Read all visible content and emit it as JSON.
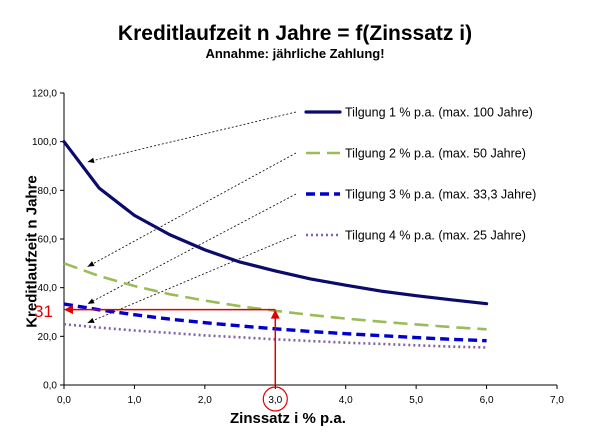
{
  "chart_data": {
    "type": "line",
    "title": "Kreditlaufzeit n Jahre = f(Zinssatz i)",
    "subtitle": "Annahme: jährliche Zahlung!",
    "xlabel": "Zinssatz  i % p.a.",
    "ylabel": "Kreditlaufzeit  n Jahre",
    "xlim": [
      0,
      7
    ],
    "ylim": [
      0,
      120
    ],
    "x_ticks": [
      "0,0",
      "1,0",
      "2,0",
      "3,0",
      "4,0",
      "5,0",
      "6,0",
      "7,0"
    ],
    "y_ticks": [
      "0,0",
      "20,0",
      "40,0",
      "60,0",
      "80,0",
      "100,0",
      "120,0"
    ],
    "grid": false,
    "legend_position": "right",
    "x": [
      0,
      0.5,
      1,
      1.5,
      2,
      2.5,
      3,
      3.5,
      4,
      4.5,
      5,
      5.5,
      6
    ],
    "series": [
      {
        "name": "Tilgung 1 % p.a. (max. 100 Jahre)",
        "color": "#0b0b6b",
        "style": "solid",
        "values": [
          100.0,
          80.9,
          69.7,
          61.8,
          55.5,
          50.5,
          46.9,
          43.6,
          41.0,
          38.6,
          36.7,
          35.0,
          33.4
        ]
      },
      {
        "name": "Tilgung 2 % p.a. (max. 50 Jahre)",
        "color": "#9bbb59",
        "style": "dashed",
        "values": [
          50.0,
          44.8,
          40.7,
          37.3,
          34.7,
          32.4,
          30.5,
          28.8,
          27.3,
          26.0,
          24.9,
          23.8,
          22.9
        ]
      },
      {
        "name": "Tilgung 3 % p.a. (max. 33,3 Jahre)",
        "color": "#0000cc",
        "style": "dashed-thick",
        "values": [
          33.3,
          30.9,
          28.9,
          27.1,
          25.6,
          24.3,
          23.1,
          22.0,
          21.1,
          20.3,
          19.5,
          18.8,
          18.2
        ]
      },
      {
        "name": "Tilgung 4 % p.a. (max. 25 Jahre)",
        "color": "#8064a2",
        "style": "dotted",
        "values": [
          25.0,
          23.6,
          22.4,
          21.4,
          20.4,
          19.6,
          18.8,
          18.1,
          17.4,
          16.9,
          16.3,
          15.8,
          15.4
        ]
      }
    ],
    "annotations": {
      "marker_value": "31",
      "marker_x": 3.0,
      "marker_y": 31,
      "color": "#e00000"
    }
  }
}
